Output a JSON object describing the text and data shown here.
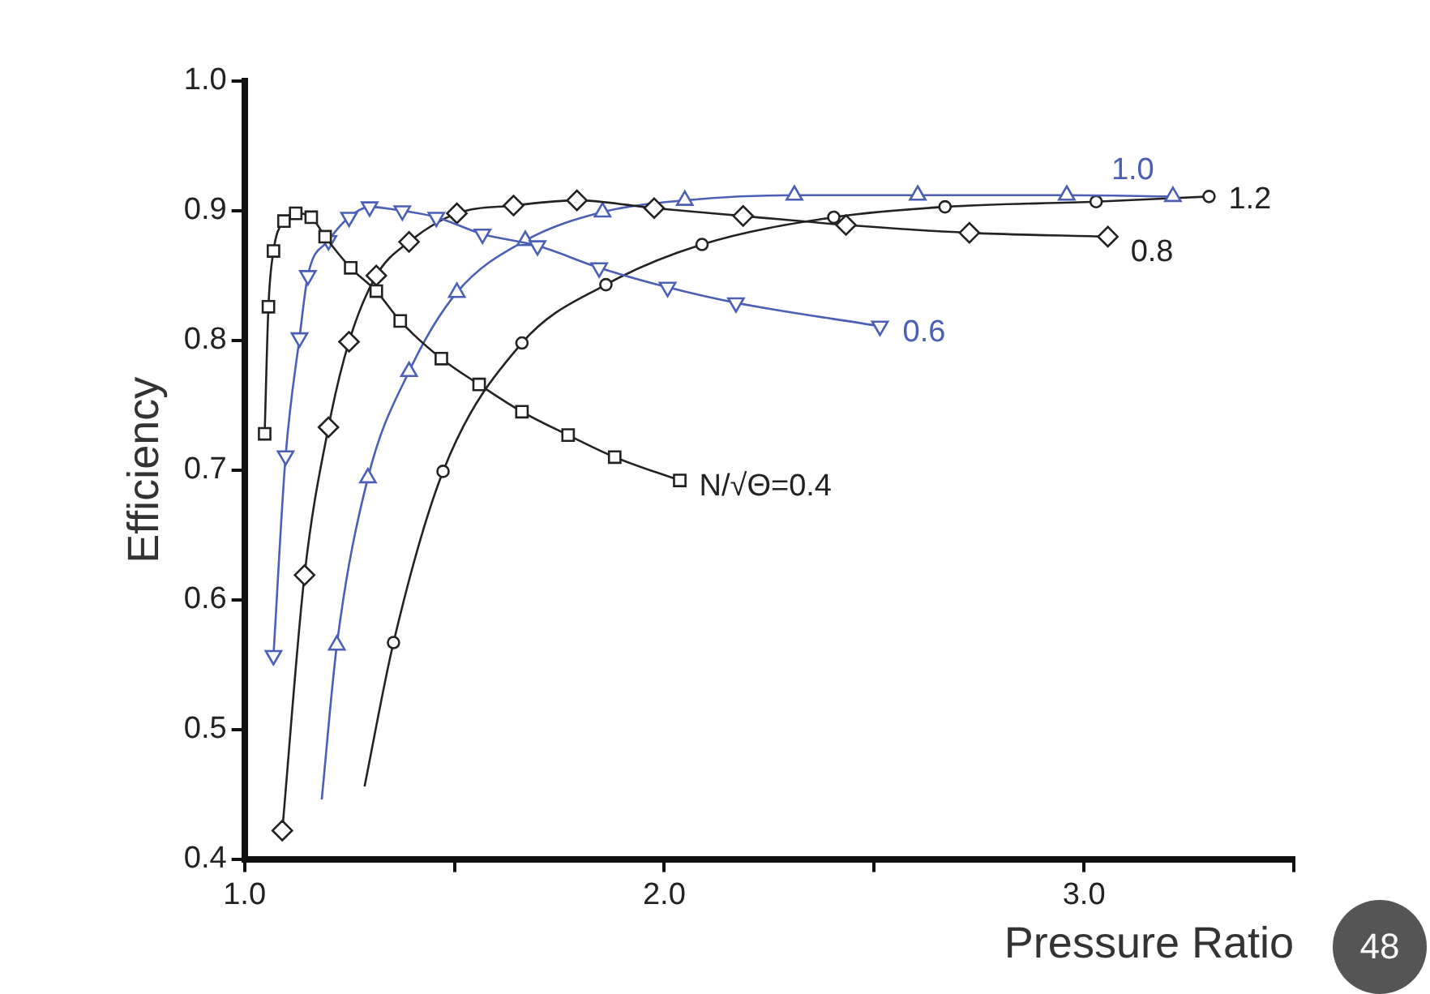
{
  "chart_data": {
    "type": "line",
    "xlabel": "Pressure Ratio",
    "ylabel": "Efficiency",
    "xlim": [
      1.0,
      3.5
    ],
    "ylim": [
      0.4,
      1.0
    ],
    "xticks": [
      {
        "value": 1.0,
        "label": "1.0"
      },
      {
        "value": 1.5,
        "label": null
      },
      {
        "value": 2.0,
        "label": "2.0"
      },
      {
        "value": 2.5,
        "label": null
      },
      {
        "value": 3.0,
        "label": "3.0"
      },
      {
        "value": 3.5,
        "label": null
      }
    ],
    "yticks": [
      {
        "value": 0.4,
        "label": "0.4"
      },
      {
        "value": 0.5,
        "label": "0.5"
      },
      {
        "value": 0.6,
        "label": "0.6"
      },
      {
        "value": 0.7,
        "label": "0.7"
      },
      {
        "value": 0.8,
        "label": "0.8"
      },
      {
        "value": 0.9,
        "label": "0.9"
      },
      {
        "value": 1.0,
        "label": "1.0"
      }
    ],
    "grid": false,
    "legend": false,
    "line_style": "solid",
    "annotations": [
      "48"
    ],
    "series": [
      {
        "name": "N/√Θ=0.4",
        "color": "#222222",
        "marker": "square",
        "x": [
          1.048,
          1.057,
          1.069,
          1.094,
          1.122,
          1.159,
          1.192,
          1.253,
          1.314,
          1.371,
          1.469,
          1.559,
          1.661,
          1.771,
          1.882,
          2.037
        ],
        "values": [
          0.728,
          0.826,
          0.869,
          0.892,
          0.898,
          0.895,
          0.88,
          0.856,
          0.838,
          0.815,
          0.786,
          0.766,
          0.745,
          0.727,
          0.71,
          0.692
        ]
      },
      {
        "name": "0.6",
        "color": "#4a5fb5",
        "marker": "triangle-down",
        "x": [
          1.069,
          1.098,
          1.131,
          1.151,
          1.2,
          1.249,
          1.298,
          1.376,
          1.457,
          1.567,
          1.698,
          1.845,
          2.008,
          2.171,
          2.514
        ],
        "values": [
          0.557,
          0.711,
          0.802,
          0.85,
          0.877,
          0.895,
          0.903,
          0.9,
          0.895,
          0.882,
          0.873,
          0.856,
          0.841,
          0.829,
          0.811
        ]
      },
      {
        "name": "0.8",
        "color": "#222222",
        "marker": "diamond",
        "x": [
          1.09,
          1.143,
          1.2,
          1.249,
          1.314,
          1.392,
          1.506,
          1.641,
          1.792,
          1.976,
          2.188,
          2.433,
          2.727,
          3.057
        ],
        "values": [
          0.422,
          0.619,
          0.733,
          0.799,
          0.85,
          0.876,
          0.898,
          0.904,
          0.908,
          0.902,
          0.896,
          0.889,
          0.883,
          0.88
        ]
      },
      {
        "name": "1.0",
        "color": "#4a5fb5",
        "marker": "triangle",
        "x": [
          1.184,
          1.22,
          1.294,
          1.392,
          1.506,
          1.669,
          1.853,
          2.049,
          2.31,
          2.604,
          2.959,
          3.212
        ],
        "values": [
          0.446,
          0.565,
          0.694,
          0.776,
          0.837,
          0.877,
          0.899,
          0.908,
          0.912,
          0.912,
          0.912,
          0.911
        ]
      },
      {
        "name": "1.2",
        "color": "#222222",
        "marker": "circle",
        "x": [
          1.286,
          1.355,
          1.473,
          1.661,
          1.861,
          2.09,
          2.404,
          2.669,
          3.029,
          3.298
        ],
        "values": [
          0.456,
          0.567,
          0.699,
          0.798,
          0.843,
          0.874,
          0.895,
          0.903,
          0.907,
          0.911
        ]
      }
    ]
  }
}
